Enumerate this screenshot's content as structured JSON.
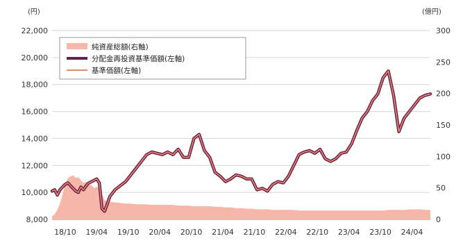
{
  "chart_data": {
    "type": "line",
    "left_unit": "(円)",
    "right_unit": "(億円)",
    "left_axis": {
      "ylim": [
        8000,
        22000
      ],
      "ticks": [
        "8,000",
        "10,000",
        "12,000",
        "14,000",
        "16,000",
        "18,000",
        "20,000",
        "22,000"
      ]
    },
    "right_axis": {
      "ylim": [
        0,
        300
      ],
      "ticks": [
        "0",
        "50",
        "100",
        "150",
        "200",
        "250",
        "300"
      ]
    },
    "x_ticks": [
      "18/10",
      "19/04",
      "19/10",
      "20/04",
      "20/10",
      "21/04",
      "21/10",
      "22/04",
      "22/10",
      "23/04",
      "23/10",
      "24/04"
    ],
    "legend": {
      "placement": "top-left",
      "entries": [
        "純資産総額(右軸)",
        "分配金再投資基準価額(左軸)",
        "基準価額(左軸)"
      ]
    },
    "series": [
      {
        "name": "純資産総額(右軸)",
        "kind": "area",
        "axis": "right",
        "color": "#f6b7a8",
        "x": [
          0,
          0.5,
          1,
          1.5,
          2,
          2.5,
          3,
          3.5,
          4,
          4.5,
          5,
          5.5,
          6,
          6.5,
          7,
          7.5,
          8,
          8.5,
          9,
          9.5,
          10,
          11,
          12,
          13,
          14,
          15,
          16,
          17,
          18,
          19,
          20,
          21,
          22,
          23,
          24,
          25,
          26,
          27,
          28,
          29,
          30,
          31,
          32,
          33,
          34,
          35,
          36,
          37,
          38,
          39,
          40,
          41,
          42,
          43,
          44,
          45,
          46,
          47,
          48,
          49,
          50,
          51,
          52,
          53,
          54,
          55,
          56,
          57,
          58,
          59,
          60,
          61,
          62,
          63,
          64,
          65,
          66,
          67,
          68,
          69,
          70,
          71,
          72
        ],
        "values": [
          5,
          8,
          15,
          25,
          40,
          55,
          65,
          68,
          70,
          66,
          67,
          62,
          58,
          60,
          55,
          54,
          50,
          52,
          48,
          40,
          30,
          28,
          27,
          26,
          25,
          25,
          24,
          24,
          24,
          23,
          23,
          23,
          23,
          23,
          22,
          22,
          22,
          21,
          21,
          21,
          21,
          20,
          20,
          19,
          19,
          18,
          18,
          17,
          17,
          16,
          16,
          16,
          15,
          15,
          15,
          15,
          15,
          14,
          14,
          14,
          14,
          14,
          14,
          14,
          14,
          14,
          14,
          14,
          14,
          14,
          14,
          14,
          14,
          14,
          15,
          15,
          15,
          15,
          16,
          16,
          16,
          15,
          15
        ]
      },
      {
        "name": "分配金再投資基準価額(左軸)",
        "kind": "line",
        "axis": "left",
        "color": "#6b1d4e",
        "x": [
          0,
          0.5,
          1,
          1.5,
          2,
          2.5,
          3,
          3.5,
          4,
          4.5,
          5,
          5.5,
          6,
          6.5,
          7,
          7.5,
          8,
          8.5,
          9,
          9.5,
          10,
          11,
          12,
          13,
          14,
          15,
          16,
          17,
          18,
          19,
          20,
          21,
          22,
          23,
          24,
          25,
          26,
          27,
          28,
          29,
          30,
          31,
          32,
          33,
          34,
          35,
          36,
          37,
          38,
          39,
          40,
          41,
          42,
          43,
          44,
          45,
          46,
          47,
          48,
          49,
          50,
          51,
          52,
          53,
          54,
          55,
          56,
          57,
          58,
          59,
          60,
          61,
          62,
          63,
          64,
          65,
          66,
          67,
          68,
          69,
          70,
          71,
          72
        ],
        "values": [
          10100,
          10200,
          9800,
          10200,
          10400,
          10600,
          10700,
          10500,
          10300,
          10100,
          10000,
          10400,
          10200,
          10500,
          10700,
          10800,
          10900,
          11000,
          10700,
          8800,
          8600,
          9700,
          10200,
          10500,
          10800,
          11300,
          11800,
          12300,
          12800,
          13000,
          12900,
          12800,
          13000,
          12800,
          13200,
          12600,
          12600,
          14000,
          14300,
          13100,
          12600,
          11500,
          11200,
          10800,
          11000,
          11300,
          11200,
          11000,
          11000,
          10200,
          10300,
          10100,
          10600,
          10800,
          10700,
          11200,
          12000,
          12800,
          13000,
          13100,
          12900,
          13200,
          12500,
          12300,
          12500,
          12900,
          13000,
          13600,
          14600,
          15500,
          16000,
          16800,
          17300,
          18500,
          19000,
          17200,
          14500,
          15500,
          16000,
          16500,
          17000,
          17200,
          17300
        ]
      },
      {
        "name": "基準価額(左軸)",
        "kind": "line",
        "axis": "left",
        "color": "#e48b68",
        "x": [
          0,
          0.5,
          1,
          1.5,
          2,
          2.5,
          3,
          3.5,
          4,
          4.5,
          5,
          5.5,
          6,
          6.5,
          7,
          7.5,
          8,
          8.5,
          9,
          9.5,
          10,
          11,
          12,
          13,
          14,
          15,
          16,
          17,
          18,
          19,
          20,
          21,
          22,
          23,
          24,
          25,
          26,
          27,
          28,
          29,
          30,
          31,
          32,
          33,
          34,
          35,
          36,
          37,
          38,
          39,
          40,
          41,
          42,
          43,
          44,
          45,
          46,
          47,
          48,
          49,
          50,
          51,
          52,
          53,
          54,
          55,
          56,
          57,
          58,
          59,
          60,
          61,
          62,
          63,
          64,
          65,
          66,
          67,
          68,
          69,
          70,
          71,
          72
        ],
        "values": [
          10100,
          10200,
          9800,
          10200,
          10400,
          10600,
          10700,
          10500,
          10300,
          10100,
          10000,
          10400,
          10200,
          10500,
          10700,
          10800,
          10900,
          11000,
          10700,
          8800,
          8600,
          9700,
          10200,
          10500,
          10800,
          11300,
          11800,
          12300,
          12800,
          13000,
          12900,
          12800,
          13000,
          12800,
          13200,
          12600,
          12600,
          14000,
          14300,
          13100,
          12600,
          11500,
          11200,
          10800,
          11000,
          11300,
          11200,
          11000,
          11000,
          10200,
          10300,
          10100,
          10600,
          10800,
          10700,
          11200,
          12000,
          12800,
          13000,
          13100,
          12900,
          13200,
          12500,
          12300,
          12500,
          12900,
          13000,
          13600,
          14600,
          15500,
          16000,
          16800,
          17300,
          18500,
          19000,
          17200,
          14500,
          15500,
          16000,
          16500,
          17000,
          17200,
          17300
        ]
      }
    ]
  }
}
